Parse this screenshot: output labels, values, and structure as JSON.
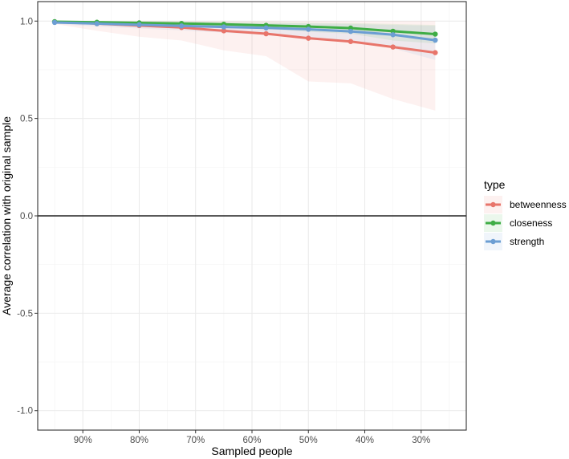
{
  "chart_data": {
    "type": "line",
    "xlabel": "Sampled people",
    "ylabel": "Average correlation with original sample",
    "x_ticks": [
      {
        "pos": 1,
        "label": "90%"
      },
      {
        "pos": 3,
        "label": "80%"
      },
      {
        "pos": 5,
        "label": "70%"
      },
      {
        "pos": 7,
        "label": "60%"
      },
      {
        "pos": 9,
        "label": "50%"
      },
      {
        "pos": 11,
        "label": "40%"
      },
      {
        "pos": 13,
        "label": "30%"
      }
    ],
    "y_ticks": [
      {
        "value": 1.0,
        "label": "1.0"
      },
      {
        "value": 0.5,
        "label": "0.5"
      },
      {
        "value": 0.0,
        "label": "0.0"
      },
      {
        "value": -0.5,
        "label": "-0.5"
      },
      {
        "value": -1.0,
        "label": "-1.0"
      }
    ],
    "xlim": [
      -0.6,
      14.6
    ],
    "ylim": [
      -1.1,
      1.1
    ],
    "x": [
      0,
      1.5,
      3,
      4.5,
      6,
      7.5,
      9,
      10.5,
      12,
      13.5
    ],
    "grid": true,
    "hline_at": 0,
    "legend": {
      "title": "type",
      "position": "right"
    },
    "series": [
      {
        "name": "betweenness",
        "color": "#e8756b",
        "values": [
          0.995,
          0.987,
          0.977,
          0.967,
          0.95,
          0.935,
          0.912,
          0.895,
          0.867,
          0.838
        ],
        "lower": [
          0.985,
          0.95,
          0.92,
          0.9,
          0.85,
          0.82,
          0.69,
          0.68,
          0.6,
          0.54
        ],
        "upper": [
          1.0,
          1.0,
          1.0,
          1.0,
          1.0,
          1.0,
          1.0,
          1.0,
          1.0,
          1.0
        ]
      },
      {
        "name": "closeness",
        "color": "#3fad46",
        "values": [
          0.997,
          0.994,
          0.991,
          0.988,
          0.984,
          0.978,
          0.972,
          0.964,
          0.948,
          0.933
        ],
        "lower": [
          0.993,
          0.987,
          0.982,
          0.978,
          0.968,
          0.96,
          0.945,
          0.935,
          0.9,
          0.885
        ],
        "upper": [
          1.0,
          1.0,
          1.0,
          0.998,
          0.997,
          0.995,
          0.992,
          0.99,
          0.985,
          0.98
        ]
      },
      {
        "name": "strength",
        "color": "#6c9ed3",
        "values": [
          0.993,
          0.987,
          0.981,
          0.975,
          0.97,
          0.965,
          0.958,
          0.947,
          0.93,
          0.902
        ],
        "lower": [
          0.985,
          0.972,
          0.962,
          0.952,
          0.94,
          0.93,
          0.91,
          0.895,
          0.86,
          0.8
        ],
        "upper": [
          1.0,
          0.998,
          0.996,
          0.994,
          0.992,
          0.99,
          0.988,
          0.985,
          0.98,
          0.975
        ]
      }
    ]
  }
}
